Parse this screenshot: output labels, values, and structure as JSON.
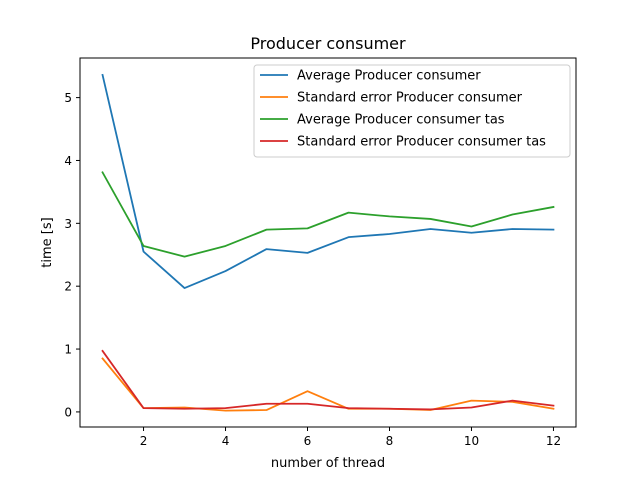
{
  "chart_data": {
    "type": "line",
    "title": "Producer consumer",
    "xlabel": "number of thread",
    "ylabel": "time [s]",
    "xlim": [
      0.45,
      12.55
    ],
    "ylim": [
      -0.24,
      5.63
    ],
    "x_ticks": [
      2,
      4,
      6,
      8,
      10,
      12
    ],
    "x_tick_labels": [
      "2",
      "4",
      "6",
      "8",
      "10",
      "12"
    ],
    "y_ticks": [
      0,
      1,
      2,
      3,
      4,
      5
    ],
    "y_tick_labels": [
      "0",
      "1",
      "2",
      "3",
      "4",
      "5"
    ],
    "grid": false,
    "legend_position": "top-right",
    "x": [
      1,
      2,
      3,
      4,
      5,
      6,
      7,
      8,
      9,
      10,
      11,
      12
    ],
    "series": [
      {
        "name": "Average Producer consumer",
        "color": "#1f77b4",
        "values": [
          5.36,
          2.55,
          1.97,
          2.24,
          2.59,
          2.53,
          2.78,
          2.83,
          2.91,
          2.85,
          2.91,
          2.9
        ]
      },
      {
        "name": "Standard error Producer consumer",
        "color": "#ff7f0e",
        "values": [
          0.85,
          0.06,
          0.07,
          0.02,
          0.03,
          0.33,
          0.05,
          0.05,
          0.03,
          0.18,
          0.16,
          0.05
        ]
      },
      {
        "name": "Average Producer consumer tas",
        "color": "#2ca02c",
        "values": [
          3.81,
          2.64,
          2.47,
          2.64,
          2.9,
          2.92,
          3.17,
          3.11,
          3.07,
          2.95,
          3.14,
          3.26
        ]
      },
      {
        "name": "Standard error Producer consumer tas",
        "color": "#d62728",
        "values": [
          0.97,
          0.06,
          0.05,
          0.06,
          0.13,
          0.13,
          0.06,
          0.05,
          0.04,
          0.07,
          0.18,
          0.1
        ]
      }
    ]
  }
}
